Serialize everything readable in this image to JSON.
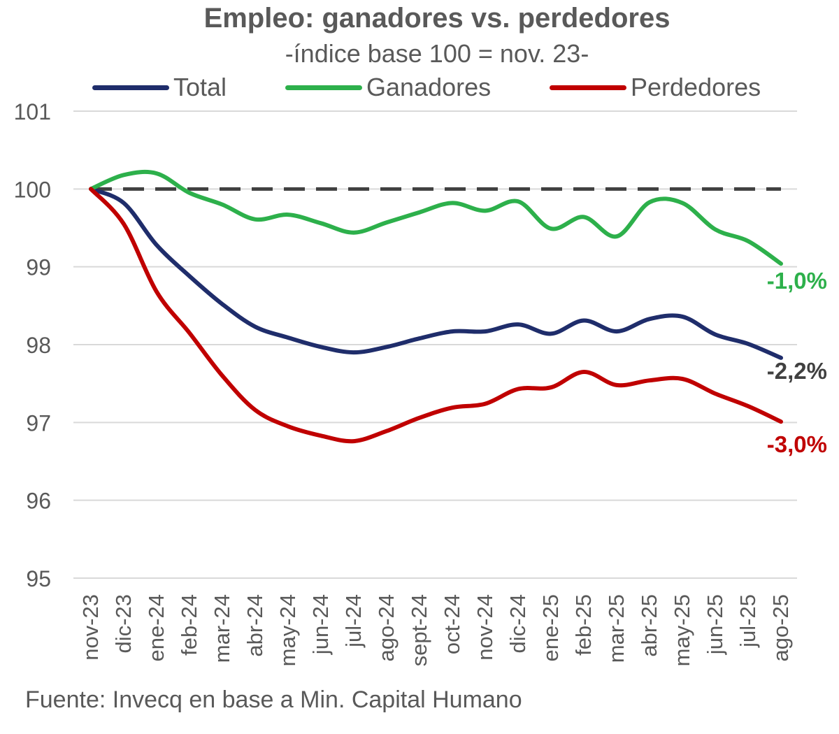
{
  "chart_data": {
    "type": "line",
    "title": "Empleo: ganadores vs. perdedores",
    "subtitle": "-índice base 100 = nov. 23-",
    "source": "Fuente: Invecq en base a Min. Capital Humano",
    "categories": [
      "nov-23",
      "dic-23",
      "ene-24",
      "feb-24",
      "mar-24",
      "abr-24",
      "may-24",
      "jun-24",
      "jul-24",
      "ago-24",
      "sept-24",
      "oct-24",
      "nov-24",
      "dic-24",
      "ene-25",
      "feb-25",
      "mar-25",
      "abr-25",
      "may-25",
      "jun-25",
      "jul-25",
      "ago-25"
    ],
    "ylim": [
      95,
      101
    ],
    "yticks": [
      "95",
      "96",
      "97",
      "98",
      "99",
      "100",
      "101"
    ],
    "reference_line": 100,
    "series": [
      {
        "name": "Total",
        "color": "#1f2d6b",
        "values": [
          100,
          99.82,
          99.28,
          98.88,
          98.52,
          98.23,
          98.09,
          97.97,
          97.9,
          97.97,
          98.08,
          98.17,
          98.17,
          98.26,
          98.14,
          98.31,
          98.17,
          98.33,
          98.36,
          98.13,
          98.01,
          97.83
        ],
        "end_label": "-2,2%",
        "end_label_color": "#404040"
      },
      {
        "name": "Ganadores",
        "color": "#2db04b",
        "values": [
          100,
          100.18,
          100.2,
          99.95,
          99.8,
          99.61,
          99.67,
          99.56,
          99.44,
          99.57,
          99.7,
          99.82,
          99.72,
          99.84,
          99.49,
          99.64,
          99.39,
          99.83,
          99.82,
          99.48,
          99.33,
          99.04
        ],
        "end_label": "-1,0%",
        "end_label_color": "#2db04b"
      },
      {
        "name": "Perdedores",
        "color": "#c00000",
        "values": [
          100,
          99.55,
          98.68,
          98.15,
          97.6,
          97.16,
          96.95,
          96.83,
          96.76,
          96.89,
          97.06,
          97.19,
          97.24,
          97.43,
          97.45,
          97.65,
          97.48,
          97.54,
          97.56,
          97.37,
          97.21,
          97.01
        ],
        "end_label": "-3,0%",
        "end_label_color": "#c00000"
      }
    ]
  }
}
